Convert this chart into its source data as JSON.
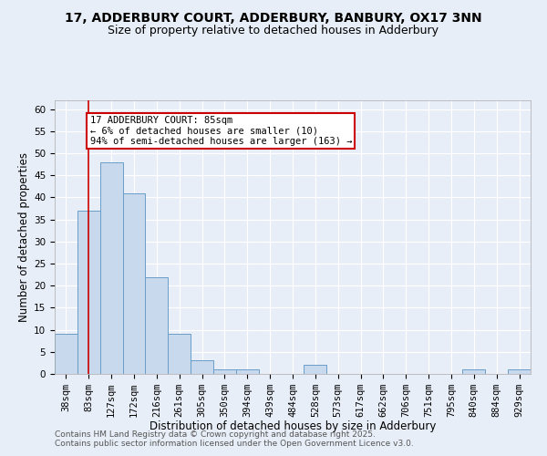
{
  "title_line1": "17, ADDERBURY COURT, ADDERBURY, BANBURY, OX17 3NN",
  "title_line2": "Size of property relative to detached houses in Adderbury",
  "xlabel": "Distribution of detached houses by size in Adderbury",
  "ylabel": "Number of detached properties",
  "bar_labels": [
    "38sqm",
    "83sqm",
    "127sqm",
    "172sqm",
    "216sqm",
    "261sqm",
    "305sqm",
    "350sqm",
    "394sqm",
    "439sqm",
    "484sqm",
    "528sqm",
    "573sqm",
    "617sqm",
    "662sqm",
    "706sqm",
    "751sqm",
    "795sqm",
    "840sqm",
    "884sqm",
    "929sqm"
  ],
  "bar_values": [
    9,
    37,
    48,
    41,
    22,
    9,
    3,
    1,
    1,
    0,
    0,
    2,
    0,
    0,
    0,
    0,
    0,
    0,
    1,
    0,
    1
  ],
  "bar_color": "#c9d9ed",
  "bar_edge_color": "#6a9ec7",
  "bg_color": "#e8eef7",
  "grid_color": "#ffffff",
  "red_line_x": 1.0,
  "annotation_text": "17 ADDERBURY COURT: 85sqm\n← 6% of detached houses are smaller (10)\n94% of semi-detached houses are larger (163) →",
  "annotation_box_color": "#ffffff",
  "annotation_box_edge": "#cc0000",
  "annotation_text_color": "#000000",
  "ylim": [
    0,
    62
  ],
  "yticks": [
    0,
    5,
    10,
    15,
    20,
    25,
    30,
    35,
    40,
    45,
    50,
    55,
    60
  ],
  "footer_line1": "Contains HM Land Registry data © Crown copyright and database right 2025.",
  "footer_line2": "Contains public sector information licensed under the Open Government Licence v3.0.",
  "title_fontsize": 10,
  "subtitle_fontsize": 9,
  "axis_label_fontsize": 8.5,
  "tick_fontsize": 7.5,
  "annotation_fontsize": 7.5,
  "footer_fontsize": 6.5
}
